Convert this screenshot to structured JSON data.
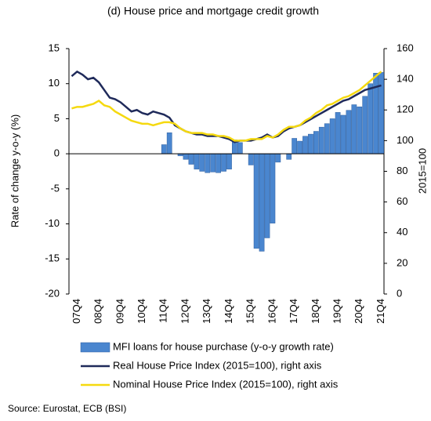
{
  "chart_data": {
    "type": "bar",
    "title": "(d) House price and mortgage credit growth",
    "y_label": "Rate of change y-o-y (%)",
    "y2_label": "2015=100",
    "source": "Source: Eurostat, ECB (BSI)",
    "categories": [
      null,
      "07Q4",
      null,
      null,
      null,
      "08Q4",
      null,
      null,
      null,
      "09Q4",
      null,
      null,
      null,
      "10Q4",
      null,
      null,
      null,
      "11Q4",
      null,
      null,
      null,
      "12Q4",
      null,
      null,
      null,
      "13Q4",
      null,
      null,
      null,
      "14Q4",
      null,
      null,
      null,
      "15Q4",
      null,
      null,
      null,
      "16Q4",
      null,
      null,
      null,
      "17Q4",
      null,
      null,
      null,
      "18Q4",
      null,
      null,
      null,
      "19Q4",
      null,
      null,
      null,
      "20Q4",
      null,
      null,
      null,
      "21Q4"
    ],
    "ylim": [
      -20,
      15
    ],
    "yticks": [
      -20,
      -15,
      -10,
      -5,
      0,
      5,
      10,
      15
    ],
    "y2lim": [
      0,
      160
    ],
    "y2ticks": [
      0,
      20,
      40,
      60,
      80,
      100,
      120,
      140,
      160
    ],
    "series": [
      {
        "name": "MFI loans for house purchase (y-o-y growth rate)",
        "type": "bar",
        "color": "#4a86cf",
        "values": [
          null,
          null,
          null,
          null,
          null,
          null,
          null,
          null,
          null,
          null,
          null,
          null,
          null,
          null,
          null,
          null,
          null,
          1.3,
          3.0,
          0,
          -0.3,
          -0.8,
          -1.5,
          -2.2,
          -2.5,
          -2.7,
          -2.6,
          -2.7,
          -2.5,
          -2.2,
          2.0,
          1.6,
          0,
          -1.6,
          -13.5,
          -13.9,
          -12,
          -9.9,
          -1.2,
          0,
          -0.8,
          2.2,
          1.8,
          2.5,
          2.8,
          3.2,
          3.8,
          4.3,
          5.0,
          5.9,
          5.5,
          6.2,
          7.0,
          6.7,
          8.2,
          10.0,
          11.5,
          11.6
        ]
      },
      {
        "name": "Real House Price Index (2015=100), right axis",
        "type": "line",
        "axis": "y2",
        "color": "#1f2a5a",
        "values": [
          142,
          145,
          143,
          140,
          141,
          138,
          133,
          128,
          127,
          125,
          122,
          119,
          120,
          118,
          117,
          119,
          118,
          117,
          115,
          110,
          108,
          106,
          105,
          104,
          104,
          103,
          103,
          103,
          102,
          101,
          99,
          100,
          100,
          100,
          101,
          102,
          104,
          102,
          103,
          106,
          108,
          109,
          110,
          112,
          114,
          116,
          118,
          120,
          122,
          124,
          126,
          127,
          129,
          131,
          133,
          134,
          135,
          136
        ]
      },
      {
        "name": "Nominal House Price Index (2015=100), right axis",
        "type": "line",
        "axis": "y2",
        "color": "#f5d90f",
        "values": [
          121,
          122,
          122,
          123,
          124,
          126,
          123,
          122,
          119,
          117,
          115,
          113,
          112,
          111,
          111,
          110,
          111,
          112,
          112,
          111,
          108,
          106,
          105,
          105,
          105,
          104,
          104,
          103,
          103,
          102,
          100,
          100,
          100,
          101,
          101,
          101,
          103,
          102,
          104,
          107,
          109,
          109,
          110,
          113,
          115,
          118,
          120,
          123,
          124,
          126,
          128,
          129,
          131,
          133,
          136,
          139,
          142,
          145
        ]
      }
    ]
  }
}
